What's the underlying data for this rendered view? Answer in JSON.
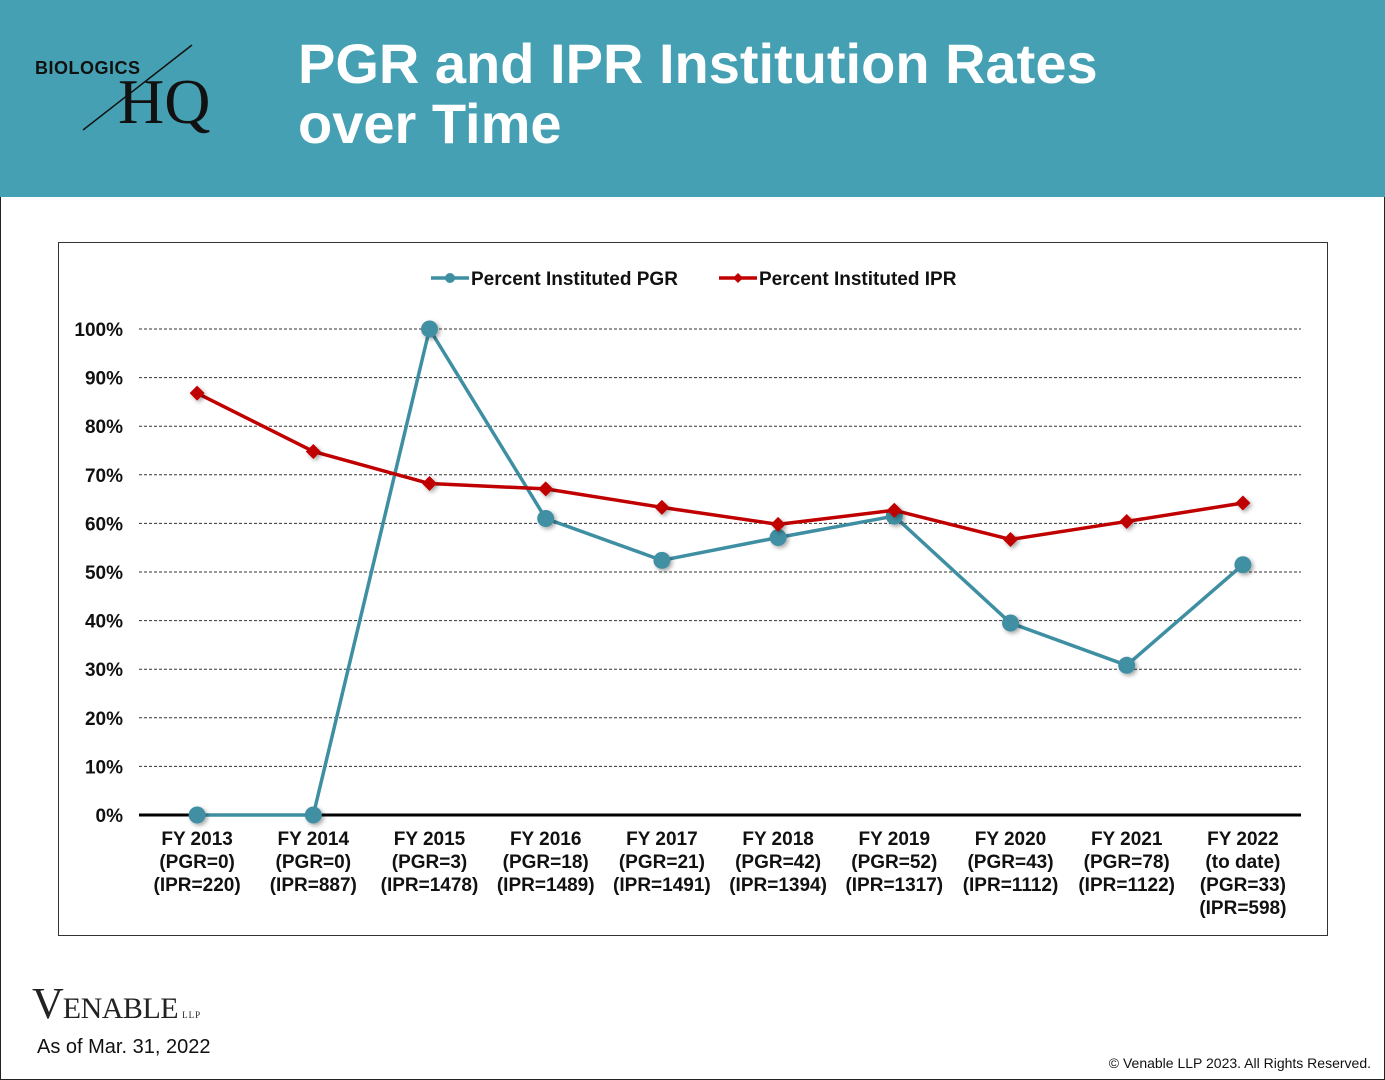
{
  "header": {
    "logo_top": "BIOLOGICS",
    "logo_main": "HQ",
    "title_line1": "PGR and IPR Institution Rates",
    "title_line2": "over Time",
    "bg_color": "#45a0b3"
  },
  "footer": {
    "brand_initial": "V",
    "brand_rest": "ENABLE",
    "brand_suffix": "LLP",
    "as_of": "As of Mar. 31, 2022",
    "copyright": "© Venable LLP 2023. All Rights Reserved."
  },
  "chart_data": {
    "type": "line",
    "title": "",
    "xlabel": "",
    "ylabel": "",
    "ylim": [
      0,
      100
    ],
    "yticks": [
      "0%",
      "10%",
      "20%",
      "30%",
      "40%",
      "50%",
      "60%",
      "70%",
      "80%",
      "90%",
      "100%"
    ],
    "grid": true,
    "legend_position": "top-center",
    "categories": [
      [
        "FY 2013",
        "(PGR=0)",
        "(IPR=220)"
      ],
      [
        "FY 2014",
        "(PGR=0)",
        "(IPR=887)"
      ],
      [
        "FY 2015",
        "(PGR=3)",
        "(IPR=1478)"
      ],
      [
        "FY 2016",
        "(PGR=18)",
        "(IPR=1489)"
      ],
      [
        "FY 2017",
        "(PGR=21)",
        "(IPR=1491)"
      ],
      [
        "FY 2018",
        "(PGR=42)",
        "(IPR=1394)"
      ],
      [
        "FY 2019",
        "(PGR=52)",
        "(IPR=1317)"
      ],
      [
        "FY 2020",
        "(PGR=43)",
        "(IPR=1112)"
      ],
      [
        "FY 2021",
        "(PGR=78)",
        "(IPR=1122)"
      ],
      [
        "FY 2022",
        "(to date)",
        "(PGR=33)",
        "(IPR=598)"
      ]
    ],
    "series": [
      {
        "name": "Percent Instituted PGR",
        "color": "#3f8fa3",
        "marker": "circle",
        "values": [
          0,
          0,
          100,
          61,
          52.4,
          57.1,
          61.5,
          39.5,
          30.8,
          51.5
        ]
      },
      {
        "name": "Percent Instituted IPR",
        "color": "#c00000",
        "marker": "diamond",
        "values": [
          86.8,
          74.8,
          68.2,
          67.1,
          63.3,
          59.8,
          62.7,
          56.7,
          60.4,
          64.2
        ]
      }
    ]
  }
}
